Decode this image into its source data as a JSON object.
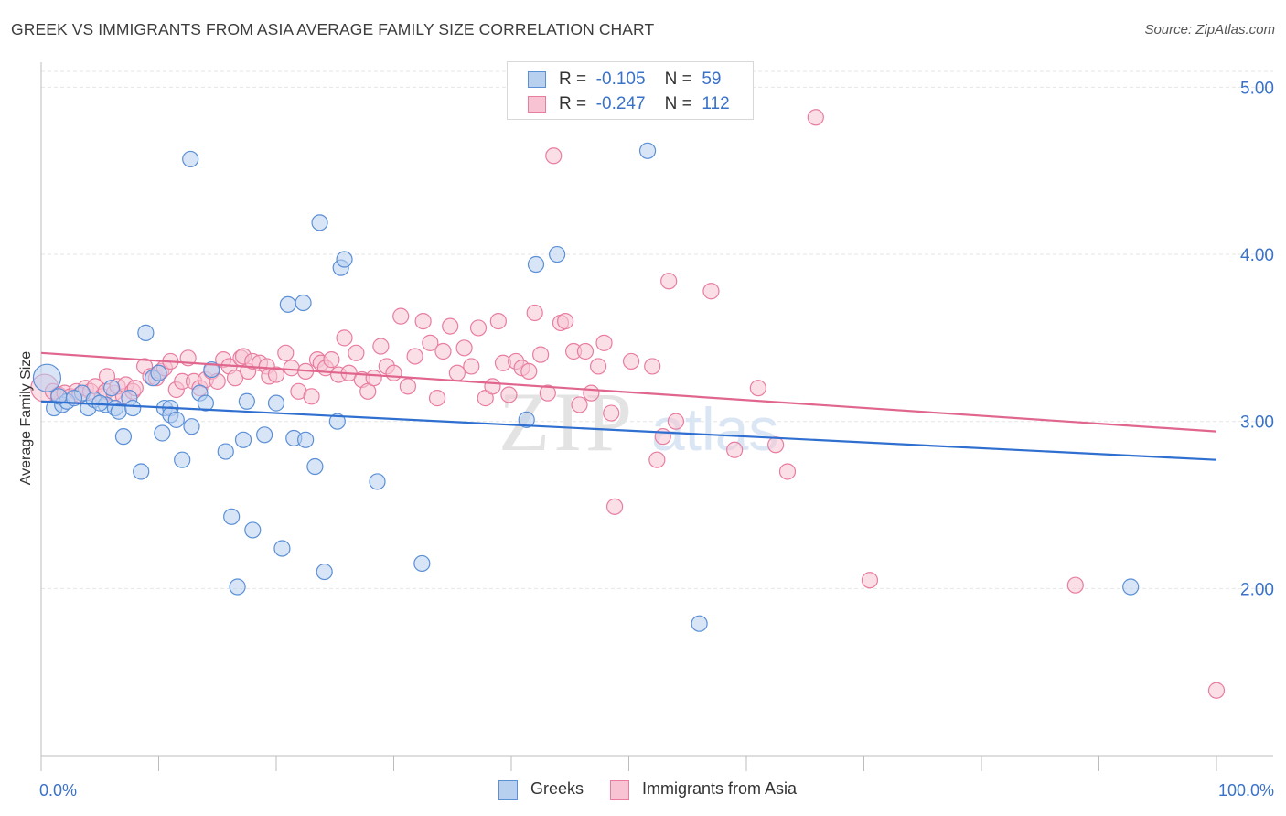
{
  "title": "GREEK VS IMMIGRANTS FROM ASIA AVERAGE FAMILY SIZE CORRELATION CHART",
  "source": "Source: ZipAtlas.com",
  "watermark": {
    "zip": "ZIP",
    "atlas": "atlas"
  },
  "legend": {
    "rows": [
      {
        "r_label": "R =",
        "r_value": "-0.105",
        "n_label": "N =",
        "n_value": "59"
      },
      {
        "r_label": "R =",
        "r_value": "-0.247",
        "n_label": "N =",
        "n_value": "112"
      }
    ]
  },
  "colors": {
    "greeks_fill": "#b8d0f0",
    "greeks_stroke": "#5b8fd6",
    "greeks_line": "#2f6fd0",
    "asia_fill": "#f8c4d4",
    "asia_stroke": "#e87da0",
    "asia_line": "#e0668e",
    "tick_label": "#3a72c8",
    "grid": "#e6e6e6"
  },
  "chart_data": {
    "type": "scatter",
    "title": "GREEK VS IMMIGRANTS FROM ASIA AVERAGE FAMILY SIZE CORRELATION CHART",
    "xlabel": "",
    "ylabel": "Average Family Size",
    "xlim": [
      0,
      100
    ],
    "ylim": [
      1.0,
      5.15
    ],
    "x_tick_labels": [
      "0.0%",
      "100.0%"
    ],
    "y_ticks": [
      2.0,
      3.0,
      4.0,
      5.0
    ],
    "y_tick_labels": [
      "2.00",
      "3.00",
      "4.00",
      "5.00"
    ],
    "grid": true,
    "legend_position": "bottom",
    "series": [
      {
        "name": "Greeks",
        "R": -0.105,
        "N": 59,
        "trend": {
          "x": [
            0,
            100
          ],
          "y": [
            3.12,
            2.77
          ]
        },
        "points": [
          {
            "x": 0.5,
            "y": 3.26,
            "big": true
          },
          {
            "x": 1.1,
            "y": 3.08
          },
          {
            "x": 1.8,
            "y": 3.1
          },
          {
            "x": 2.2,
            "y": 3.12
          },
          {
            "x": 3.5,
            "y": 3.17
          },
          {
            "x": 4.0,
            "y": 3.08
          },
          {
            "x": 4.5,
            "y": 3.13
          },
          {
            "x": 5.5,
            "y": 3.1
          },
          {
            "x": 6.0,
            "y": 3.2
          },
          {
            "x": 6.3,
            "y": 3.08
          },
          {
            "x": 6.6,
            "y": 3.06
          },
          {
            "x": 7.0,
            "y": 2.91
          },
          {
            "x": 7.5,
            "y": 3.14
          },
          {
            "x": 7.8,
            "y": 3.08
          },
          {
            "x": 8.5,
            "y": 2.7
          },
          {
            "x": 8.9,
            "y": 3.53
          },
          {
            "x": 9.5,
            "y": 3.26
          },
          {
            "x": 10.0,
            "y": 3.29
          },
          {
            "x": 10.3,
            "y": 2.93
          },
          {
            "x": 10.5,
            "y": 3.08
          },
          {
            "x": 11.0,
            "y": 3.08
          },
          {
            "x": 11.0,
            "y": 3.04
          },
          {
            "x": 11.5,
            "y": 3.01
          },
          {
            "x": 12.0,
            "y": 2.77
          },
          {
            "x": 12.8,
            "y": 2.97
          },
          {
            "x": 12.7,
            "y": 4.57
          },
          {
            "x": 13.5,
            "y": 3.17
          },
          {
            "x": 14.0,
            "y": 3.11
          },
          {
            "x": 14.5,
            "y": 3.31
          },
          {
            "x": 15.7,
            "y": 2.82
          },
          {
            "x": 16.2,
            "y": 2.43
          },
          {
            "x": 16.7,
            "y": 2.01
          },
          {
            "x": 17.2,
            "y": 2.89
          },
          {
            "x": 17.5,
            "y": 3.12
          },
          {
            "x": 18.0,
            "y": 2.35
          },
          {
            "x": 19.0,
            "y": 2.92
          },
          {
            "x": 20.0,
            "y": 3.11
          },
          {
            "x": 20.5,
            "y": 2.24
          },
          {
            "x": 21.0,
            "y": 3.7
          },
          {
            "x": 21.5,
            "y": 2.9
          },
          {
            "x": 22.3,
            "y": 3.71
          },
          {
            "x": 22.5,
            "y": 2.89
          },
          {
            "x": 23.3,
            "y": 2.73
          },
          {
            "x": 23.7,
            "y": 4.19
          },
          {
            "x": 24.1,
            "y": 2.1
          },
          {
            "x": 25.2,
            "y": 3.0
          },
          {
            "x": 25.5,
            "y": 3.92
          },
          {
            "x": 25.8,
            "y": 3.97
          },
          {
            "x": 28.6,
            "y": 2.64
          },
          {
            "x": 32.4,
            "y": 2.15
          },
          {
            "x": 41.3,
            "y": 3.01
          },
          {
            "x": 42.1,
            "y": 3.94
          },
          {
            "x": 43.9,
            "y": 4.0
          },
          {
            "x": 51.6,
            "y": 4.62
          },
          {
            "x": 56.0,
            "y": 1.79
          },
          {
            "x": 92.7,
            "y": 2.01
          },
          {
            "x": 1.5,
            "y": 3.15
          },
          {
            "x": 2.8,
            "y": 3.14
          },
          {
            "x": 5.0,
            "y": 3.11
          }
        ]
      },
      {
        "name": "Immigrants from Asia",
        "R": -0.247,
        "N": 112,
        "trend": {
          "x": [
            0,
            100
          ],
          "y": [
            3.41,
            2.94
          ]
        },
        "points": [
          {
            "x": 0.3,
            "y": 3.2,
            "big": true
          },
          {
            "x": 1.0,
            "y": 3.18
          },
          {
            "x": 1.5,
            "y": 3.16
          },
          {
            "x": 2.0,
            "y": 3.17
          },
          {
            "x": 2.5,
            "y": 3.15
          },
          {
            "x": 3.0,
            "y": 3.18
          },
          {
            "x": 3.3,
            "y": 3.16
          },
          {
            "x": 3.8,
            "y": 3.2
          },
          {
            "x": 4.2,
            "y": 3.18
          },
          {
            "x": 4.6,
            "y": 3.21
          },
          {
            "x": 5.2,
            "y": 3.15
          },
          {
            "x": 5.5,
            "y": 3.18
          },
          {
            "x": 5.6,
            "y": 3.27
          },
          {
            "x": 6.2,
            "y": 3.17
          },
          {
            "x": 6.5,
            "y": 3.21
          },
          {
            "x": 7.0,
            "y": 3.15
          },
          {
            "x": 7.2,
            "y": 3.22
          },
          {
            "x": 7.8,
            "y": 3.18
          },
          {
            "x": 8.0,
            "y": 3.2
          },
          {
            "x": 8.8,
            "y": 3.33
          },
          {
            "x": 9.3,
            "y": 3.27
          },
          {
            "x": 9.8,
            "y": 3.26
          },
          {
            "x": 10.2,
            "y": 3.3
          },
          {
            "x": 10.5,
            "y": 3.32
          },
          {
            "x": 11.0,
            "y": 3.36
          },
          {
            "x": 11.5,
            "y": 3.19
          },
          {
            "x": 12.0,
            "y": 3.24
          },
          {
            "x": 12.5,
            "y": 3.38
          },
          {
            "x": 13.0,
            "y": 3.24
          },
          {
            "x": 13.5,
            "y": 3.2
          },
          {
            "x": 14.0,
            "y": 3.25
          },
          {
            "x": 14.5,
            "y": 3.3
          },
          {
            "x": 15.0,
            "y": 3.24
          },
          {
            "x": 15.5,
            "y": 3.37
          },
          {
            "x": 16.0,
            "y": 3.33
          },
          {
            "x": 16.5,
            "y": 3.26
          },
          {
            "x": 17.0,
            "y": 3.38
          },
          {
            "x": 17.2,
            "y": 3.39
          },
          {
            "x": 17.6,
            "y": 3.3
          },
          {
            "x": 18.0,
            "y": 3.36
          },
          {
            "x": 18.6,
            "y": 3.35
          },
          {
            "x": 19.2,
            "y": 3.33
          },
          {
            "x": 19.4,
            "y": 3.27
          },
          {
            "x": 20.0,
            "y": 3.28
          },
          {
            "x": 20.8,
            "y": 3.41
          },
          {
            "x": 21.3,
            "y": 3.32
          },
          {
            "x": 21.9,
            "y": 3.18
          },
          {
            "x": 22.5,
            "y": 3.3
          },
          {
            "x": 23.0,
            "y": 3.15
          },
          {
            "x": 23.5,
            "y": 3.37
          },
          {
            "x": 23.8,
            "y": 3.35
          },
          {
            "x": 24.2,
            "y": 3.32
          },
          {
            "x": 24.7,
            "y": 3.37
          },
          {
            "x": 25.3,
            "y": 3.28
          },
          {
            "x": 25.8,
            "y": 3.5
          },
          {
            "x": 26.2,
            "y": 3.29
          },
          {
            "x": 26.8,
            "y": 3.41
          },
          {
            "x": 27.3,
            "y": 3.25
          },
          {
            "x": 27.8,
            "y": 3.18
          },
          {
            "x": 28.3,
            "y": 3.26
          },
          {
            "x": 28.9,
            "y": 3.45
          },
          {
            "x": 29.4,
            "y": 3.33
          },
          {
            "x": 30.0,
            "y": 3.29
          },
          {
            "x": 30.6,
            "y": 3.63
          },
          {
            "x": 31.2,
            "y": 3.21
          },
          {
            "x": 31.8,
            "y": 3.39
          },
          {
            "x": 32.5,
            "y": 3.6
          },
          {
            "x": 33.1,
            "y": 3.47
          },
          {
            "x": 33.7,
            "y": 3.14
          },
          {
            "x": 34.2,
            "y": 3.42
          },
          {
            "x": 34.8,
            "y": 3.57
          },
          {
            "x": 35.4,
            "y": 3.29
          },
          {
            "x": 36.0,
            "y": 3.44
          },
          {
            "x": 36.6,
            "y": 3.33
          },
          {
            "x": 37.2,
            "y": 3.56
          },
          {
            "x": 37.8,
            "y": 3.14
          },
          {
            "x": 38.4,
            "y": 3.21
          },
          {
            "x": 38.9,
            "y": 3.6
          },
          {
            "x": 39.3,
            "y": 3.35
          },
          {
            "x": 39.8,
            "y": 3.16
          },
          {
            "x": 40.4,
            "y": 3.36
          },
          {
            "x": 40.9,
            "y": 3.32
          },
          {
            "x": 41.5,
            "y": 3.3
          },
          {
            "x": 42.0,
            "y": 3.65
          },
          {
            "x": 42.5,
            "y": 3.4
          },
          {
            "x": 43.1,
            "y": 3.17
          },
          {
            "x": 43.6,
            "y": 4.59
          },
          {
            "x": 44.2,
            "y": 3.59
          },
          {
            "x": 44.6,
            "y": 3.6
          },
          {
            "x": 45.3,
            "y": 3.42
          },
          {
            "x": 45.8,
            "y": 3.1
          },
          {
            "x": 46.3,
            "y": 3.42
          },
          {
            "x": 46.8,
            "y": 3.17
          },
          {
            "x": 47.4,
            "y": 3.33
          },
          {
            "x": 47.9,
            "y": 3.47
          },
          {
            "x": 48.5,
            "y": 3.05
          },
          {
            "x": 50.2,
            "y": 3.36
          },
          {
            "x": 52.0,
            "y": 3.33
          },
          {
            "x": 52.4,
            "y": 2.77
          },
          {
            "x": 52.9,
            "y": 2.91
          },
          {
            "x": 53.4,
            "y": 3.84
          },
          {
            "x": 54.0,
            "y": 3.0
          },
          {
            "x": 57.0,
            "y": 3.78
          },
          {
            "x": 59.0,
            "y": 2.83
          },
          {
            "x": 61.0,
            "y": 3.2
          },
          {
            "x": 62.5,
            "y": 2.86
          },
          {
            "x": 63.5,
            "y": 2.7
          },
          {
            "x": 65.9,
            "y": 4.82
          },
          {
            "x": 70.5,
            "y": 2.05
          },
          {
            "x": 88.0,
            "y": 2.02
          },
          {
            "x": 100.0,
            "y": 1.39
          },
          {
            "x": 48.8,
            "y": 2.49
          }
        ]
      }
    ]
  }
}
